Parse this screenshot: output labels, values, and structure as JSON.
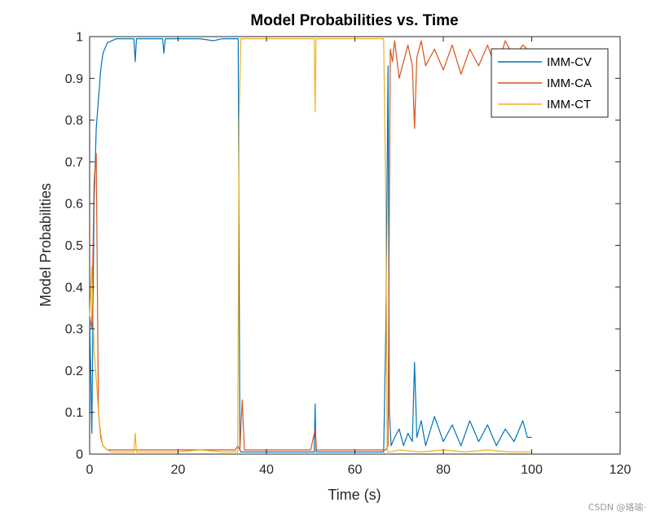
{
  "chart_data": {
    "type": "line",
    "title": "Model Probabilities vs. Time",
    "xlabel": "Time (s)",
    "ylabel": "Model Probabilities",
    "xlim": [
      0,
      120
    ],
    "ylim": [
      0,
      1
    ],
    "xticks": [
      0,
      20,
      40,
      60,
      80,
      100,
      120
    ],
    "yticks": [
      0,
      0.1,
      0.2,
      0.3,
      0.4,
      0.5,
      0.6,
      0.7,
      0.8,
      0.9,
      1
    ],
    "grid": false,
    "legend_location": "top-right",
    "series": [
      {
        "name": "IMM-CV",
        "color": "#0072BD",
        "x": [
          0,
          0.5,
          1,
          1.5,
          2,
          2.5,
          3,
          4,
          5,
          6,
          8,
          10,
          10.3,
          10.6,
          12,
          15,
          16.5,
          16.8,
          17.1,
          20,
          25,
          28,
          30,
          33,
          33.6,
          33.8,
          34,
          34.2,
          40,
          50,
          50.8,
          51,
          51.2,
          55,
          60,
          65,
          66.5,
          67,
          67.5,
          67.8,
          68.2,
          69,
          70,
          71,
          72,
          73,
          73.5,
          74,
          75,
          76,
          78,
          80,
          82,
          84,
          86,
          88,
          90,
          92,
          94,
          96,
          98,
          99,
          100
        ],
        "y": [
          0.33,
          0.05,
          0.6,
          0.78,
          0.85,
          0.92,
          0.96,
          0.985,
          0.99,
          0.995,
          0.995,
          0.995,
          0.94,
          0.995,
          0.995,
          0.995,
          0.995,
          0.96,
          0.995,
          0.995,
          0.995,
          0.99,
          0.995,
          0.995,
          0.995,
          0.5,
          0.01,
          0.005,
          0.005,
          0.005,
          0.005,
          0.12,
          0.005,
          0.005,
          0.005,
          0.005,
          0.005,
          0.3,
          0.93,
          0.1,
          0.02,
          0.04,
          0.06,
          0.02,
          0.05,
          0.03,
          0.22,
          0.04,
          0.08,
          0.02,
          0.09,
          0.03,
          0.07,
          0.02,
          0.08,
          0.03,
          0.07,
          0.02,
          0.06,
          0.03,
          0.08,
          0.04,
          0.04
        ]
      },
      {
        "name": "IMM-CA",
        "color": "#D95319",
        "x": [
          0,
          0.5,
          1,
          1.5,
          2,
          2.5,
          3,
          4,
          6,
          10,
          20,
          30,
          33,
          33.5,
          34,
          34.5,
          35,
          40,
          50,
          51,
          51.3,
          55,
          60,
          65,
          67,
          67.5,
          67.8,
          68,
          68.5,
          69,
          70,
          72,
          73,
          73.5,
          74,
          75,
          76,
          78,
          80,
          82,
          84,
          86,
          88,
          90,
          92,
          94,
          96,
          98,
          100
        ],
        "y": [
          0.33,
          0.3,
          0.65,
          0.72,
          0.1,
          0.04,
          0.02,
          0.01,
          0.01,
          0.01,
          0.01,
          0.01,
          0.01,
          0.02,
          0.01,
          0.13,
          0.01,
          0.01,
          0.01,
          0.06,
          0.01,
          0.01,
          0.01,
          0.01,
          0.01,
          0.02,
          0.58,
          0.97,
          0.94,
          0.99,
          0.9,
          0.98,
          0.93,
          0.78,
          0.95,
          0.99,
          0.93,
          0.97,
          0.92,
          0.98,
          0.91,
          0.97,
          0.93,
          0.98,
          0.92,
          0.99,
          0.95,
          0.98,
          0.96
        ]
      },
      {
        "name": "IMM-CT",
        "color": "#EDB120",
        "x": [
          0,
          0.5,
          1,
          1.5,
          2,
          2.5,
          3,
          4,
          5,
          10,
          10.3,
          10.6,
          15,
          20,
          25,
          30,
          33,
          33.5,
          33.8,
          34.2,
          35,
          40,
          45,
          50,
          50.8,
          51,
          51.2,
          55,
          60,
          65,
          66.5,
          67,
          67.3,
          67.6,
          68,
          70,
          75,
          80,
          85,
          90,
          95,
          100
        ],
        "y": [
          0.33,
          0.45,
          0.25,
          0.18,
          0.1,
          0.05,
          0.02,
          0.01,
          0.005,
          0.005,
          0.05,
          0.005,
          0.005,
          0.005,
          0.01,
          0.005,
          0.005,
          0.005,
          0.8,
          0.995,
          0.995,
          0.995,
          0.995,
          0.995,
          0.995,
          0.82,
          0.995,
          0.995,
          0.995,
          0.995,
          0.995,
          0.6,
          0.01,
          0.005,
          0.005,
          0.01,
          0.005,
          0.01,
          0.005,
          0.01,
          0.005,
          0.005
        ]
      }
    ]
  },
  "watermark": "CSDN @珞瑜·"
}
